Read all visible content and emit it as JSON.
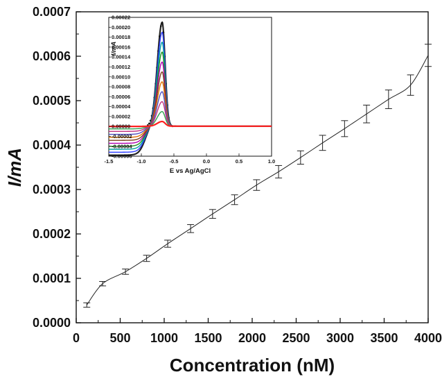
{
  "chart_data": [
    {
      "type": "line",
      "xlabel": "Concentration (nM)",
      "ylabel": "I/mA",
      "xlim": [
        0,
        4000
      ],
      "ylim": [
        0,
        0.0007
      ],
      "x_ticks": [
        0,
        500,
        1000,
        1500,
        2000,
        2500,
        3000,
        3500,
        4000
      ],
      "y_ticks": [
        "0.0000",
        "0.0001",
        "0.0002",
        "0.0003",
        "0.0004",
        "0.0005",
        "0.0006",
        "0.0007"
      ],
      "error_bars": true,
      "grid": false,
      "series": [
        {
          "x": [
            120,
            300,
            560,
            800,
            1040,
            1300,
            1550,
            1800,
            2050,
            2300,
            2550,
            2800,
            3050,
            3300,
            3550,
            3800,
            4000
          ],
          "values": [
            4e-05,
            8.8e-05,
            0.000115,
            0.000145,
            0.000178,
            0.000212,
            0.000245,
            0.000277,
            0.00031,
            0.00034,
            0.000372,
            0.000405,
            0.000437,
            0.00047,
            0.000503,
            0.000535,
            0.000602
          ],
          "errors": [
            5e-06,
            5e-06,
            6e-06,
            7e-06,
            8e-06,
            9e-06,
            1e-05,
            1.1e-05,
            1.2e-05,
            1.4e-05,
            1.5e-05,
            1.7e-05,
            1.8e-05,
            2e-05,
            2.1e-05,
            2.3e-05,
            2.5e-05
          ]
        }
      ]
    },
    {
      "type": "line",
      "inset": true,
      "xlabel": "E vs Ag/AgCl",
      "ylabel": "I/mA",
      "xlim": [
        -1.5,
        1.0
      ],
      "ylim": [
        -6e-05,
        0.00022
      ],
      "x_ticks": [
        "-1.5",
        "-1.0",
        "-0.5",
        "0.0",
        "0.5",
        "1.0"
      ],
      "y_ticks": [
        "0.00022",
        "0.00020",
        "0.00018",
        "0.00016",
        "0.00014",
        "0.00012",
        "0.00010",
        "0.00008",
        "0.00006",
        "0.00004",
        "0.00002",
        "0.00000",
        "-0.00002",
        "-0.00004",
        "-0.00006"
      ],
      "series_colors": [
        "#222222",
        "#2b3cff",
        "#00a0a0",
        "#1f8f1f",
        "#b000b0",
        "#7a3c1a",
        "#e07000",
        "#5050c0",
        "#c03080",
        "#30a050",
        "#ff2020"
      ],
      "series": [
        {
          "peak_potential": -0.68,
          "peak_current": 0.00021,
          "baseline_current": -5.8e-05
        },
        {
          "peak_potential": -0.68,
          "peak_current": 0.00019,
          "baseline_current": -5.2e-05
        },
        {
          "peak_potential": -0.68,
          "peak_current": 0.00017,
          "baseline_current": -4.6e-05
        },
        {
          "peak_potential": -0.68,
          "peak_current": 0.00015,
          "baseline_current": -4e-05
        },
        {
          "peak_potential": -0.68,
          "peak_current": 0.00013,
          "baseline_current": -3.4e-05
        },
        {
          "peak_potential": -0.68,
          "peak_current": 0.00011,
          "baseline_current": -2.8e-05
        },
        {
          "peak_potential": -0.68,
          "peak_current": 9e-05,
          "baseline_current": -2.2e-05
        },
        {
          "peak_potential": -0.68,
          "peak_current": 7e-05,
          "baseline_current": -1.6e-05
        },
        {
          "peak_potential": -0.68,
          "peak_current": 5e-05,
          "baseline_current": -1e-05
        },
        {
          "peak_potential": -0.68,
          "peak_current": 3e-05,
          "baseline_current": -5e-06
        },
        {
          "peak_potential": -0.68,
          "peak_current": 1e-05,
          "baseline_current": 0.0
        }
      ]
    }
  ]
}
